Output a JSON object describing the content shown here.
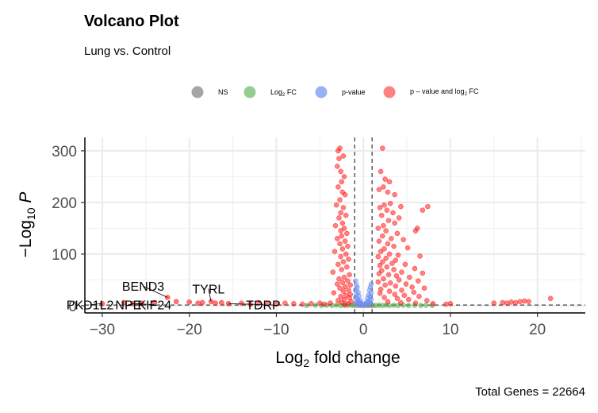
{
  "chart_data": {
    "type": "scatter",
    "title": "Volcano Plot",
    "subtitle": "Lung vs. Control",
    "xlabel": "Log2 fold change",
    "ylabel": "−Log10 P",
    "caption": "Total Genes = 22664",
    "xlim": [
      -32,
      25.5
    ],
    "ylim": [
      -14,
      326
    ],
    "x_ticks": [
      -30,
      -20,
      -10,
      0,
      10,
      20
    ],
    "x_tick_labels": [
      "−30",
      "−20",
      "−10",
      "0",
      "10",
      "20"
    ],
    "y_ticks": [
      0,
      100,
      200,
      300
    ],
    "y_tick_labels": [
      "0",
      "100",
      "200",
      "300"
    ],
    "fc_cutoff": 1,
    "p_cutoff_line": 1.3,
    "grid": true,
    "legend_position": "top",
    "legend": [
      {
        "key": "NS",
        "label": "NS",
        "color": "#7f7f7f"
      },
      {
        "key": "FC",
        "label": "Log2 FC",
        "color": "#4dab4d"
      },
      {
        "key": "P",
        "label": "p-value",
        "color": "#6f8fef"
      },
      {
        "key": "PFC",
        "label": "p – value and log2 FC",
        "color": "#ff1a1a"
      }
    ],
    "series": [
      {
        "name": "p – value and log2 FC",
        "color": "#ff1a1a",
        "points": [
          [
            -2.9,
            300
          ],
          [
            -2.7,
            305
          ],
          [
            -2.3,
            290
          ],
          [
            -2.8,
            285
          ],
          [
            -3.0,
            270
          ],
          [
            -2.6,
            260
          ],
          [
            -2.2,
            250
          ],
          [
            -2.5,
            240
          ],
          [
            -2.9,
            230
          ],
          [
            -2.4,
            220
          ],
          [
            -2.1,
            215
          ],
          [
            -2.7,
            205
          ],
          [
            -3.1,
            195
          ],
          [
            -2.3,
            190
          ],
          [
            -2.6,
            180
          ],
          [
            -2.0,
            175
          ],
          [
            -2.8,
            170
          ],
          [
            -2.4,
            160
          ],
          [
            -3.2,
            155
          ],
          [
            -2.2,
            150
          ],
          [
            -2.6,
            145
          ],
          [
            -1.9,
            140
          ],
          [
            -2.5,
            135
          ],
          [
            -3.0,
            130
          ],
          [
            -2.1,
            125
          ],
          [
            -2.7,
            120
          ],
          [
            -1.8,
            115
          ],
          [
            -2.4,
            110
          ],
          [
            -3.3,
            105
          ],
          [
            -2.0,
            100
          ],
          [
            -2.6,
            95
          ],
          [
            -1.7,
            90
          ],
          [
            -2.3,
            85
          ],
          [
            -2.9,
            80
          ],
          [
            -1.9,
            75
          ],
          [
            -2.5,
            70
          ],
          [
            -3.5,
            65
          ],
          [
            -1.6,
            60
          ],
          [
            -2.2,
            55
          ],
          [
            -2.8,
            52
          ],
          [
            -1.8,
            48
          ],
          [
            -2.4,
            45
          ],
          [
            -3.0,
            42
          ],
          [
            -1.5,
            40
          ],
          [
            -2.1,
            37
          ],
          [
            -2.7,
            34
          ],
          [
            -1.7,
            30
          ],
          [
            -2.3,
            28
          ],
          [
            -3.4,
            25
          ],
          [
            -1.5,
            22
          ],
          [
            -2.0,
            20
          ],
          [
            -2.6,
            18
          ],
          [
            -1.6,
            15
          ],
          [
            -2.2,
            12
          ],
          [
            -2.9,
            10
          ],
          [
            -1.4,
            8
          ],
          [
            -2.5,
            6
          ],
          [
            -3.8,
            5
          ],
          [
            -1.8,
            4
          ],
          [
            -4.5,
            3
          ],
          [
            -2.1,
            2
          ],
          [
            -5,
            5
          ],
          [
            -6,
            4
          ],
          [
            -7,
            3
          ],
          [
            -8,
            4
          ],
          [
            -9,
            5
          ],
          [
            -10,
            3
          ],
          [
            -11,
            4
          ],
          [
            -12,
            6
          ],
          [
            -13,
            3
          ],
          [
            -14,
            5
          ],
          [
            2.2,
            305
          ],
          [
            2.0,
            260
          ],
          [
            2.5,
            245
          ],
          [
            3.0,
            240
          ],
          [
            2.3,
            230
          ],
          [
            1.8,
            225
          ],
          [
            2.8,
            220
          ],
          [
            3.6,
            215
          ],
          [
            3.1,
            198
          ],
          [
            2.4,
            195
          ],
          [
            4.3,
            192
          ],
          [
            1.9,
            190
          ],
          [
            7.4,
            192
          ],
          [
            2.7,
            185
          ],
          [
            3.4,
            180
          ],
          [
            6.8,
            185
          ],
          [
            2.1,
            175
          ],
          [
            4.1,
            170
          ],
          [
            2.9,
            165
          ],
          [
            3.6,
            160
          ],
          [
            6.2,
            150
          ],
          [
            6.0,
            145
          ],
          [
            2.3,
            155
          ],
          [
            1.7,
            150
          ],
          [
            2.6,
            145
          ],
          [
            3.9,
            140
          ],
          [
            2.2,
            135
          ],
          [
            3.2,
            130
          ],
          [
            4.6,
            128
          ],
          [
            1.8,
            125
          ],
          [
            2.8,
            120
          ],
          [
            3.5,
            115
          ],
          [
            5.1,
            112
          ],
          [
            2.4,
            110
          ],
          [
            2.0,
            105
          ],
          [
            3.0,
            100
          ],
          [
            4.0,
            98
          ],
          [
            6.5,
            96
          ],
          [
            1.7,
            95
          ],
          [
            2.6,
            92
          ],
          [
            3.7,
            88
          ],
          [
            2.2,
            85
          ],
          [
            3.3,
            82
          ],
          [
            4.8,
            80
          ],
          [
            1.9,
            78
          ],
          [
            2.7,
            75
          ],
          [
            5.9,
            72
          ],
          [
            3.5,
            70
          ],
          [
            2.1,
            68
          ],
          [
            4.4,
            65
          ],
          [
            6.8,
            63
          ],
          [
            1.8,
            62
          ],
          [
            2.9,
            60
          ],
          [
            3.8,
            58
          ],
          [
            5.3,
            55
          ],
          [
            2.3,
            52
          ],
          [
            4.1,
            50
          ],
          [
            6.3,
            48
          ],
          [
            1.7,
            46
          ],
          [
            3.1,
            44
          ],
          [
            4.9,
            42
          ],
          [
            2.5,
            40
          ],
          [
            3.7,
            38
          ],
          [
            5.6,
            36
          ],
          [
            7.0,
            34
          ],
          [
            2.0,
            32
          ],
          [
            4.4,
            30
          ],
          [
            3.0,
            28
          ],
          [
            5.8,
            26
          ],
          [
            1.9,
            24
          ],
          [
            3.6,
            22
          ],
          [
            4.7,
            20
          ],
          [
            6.4,
            18
          ],
          [
            2.4,
            16
          ],
          [
            3.9,
            14
          ],
          [
            5.2,
            12
          ],
          [
            7.3,
            10
          ],
          [
            2.8,
            8
          ],
          [
            4.3,
            6
          ],
          [
            6.0,
            5
          ],
          [
            8.0,
            4
          ],
          [
            9.5,
            3
          ],
          [
            10,
            4
          ],
          [
            15,
            5
          ],
          [
            16,
            6
          ],
          [
            17,
            7
          ],
          [
            18,
            8
          ],
          [
            18.5,
            9
          ],
          [
            19,
            8
          ],
          [
            16.5,
            5
          ],
          [
            17.5,
            6
          ],
          [
            21.5,
            14
          ]
        ]
      },
      {
        "name": "p-value",
        "color": "#6f8fef",
        "points": [
          [
            -0.9,
            48
          ],
          [
            -0.8,
            40
          ],
          [
            -0.7,
            35
          ],
          [
            -0.9,
            30
          ],
          [
            -0.6,
            26
          ],
          [
            -0.8,
            22
          ],
          [
            -0.5,
            19
          ],
          [
            -0.9,
            16
          ],
          [
            -0.7,
            13
          ],
          [
            -0.4,
            11
          ],
          [
            -0.6,
            9
          ],
          [
            -0.8,
            7
          ],
          [
            -0.3,
            6
          ],
          [
            -0.5,
            5
          ],
          [
            -0.2,
            4
          ],
          [
            -0.7,
            3
          ],
          [
            -0.4,
            2
          ],
          [
            -0.1,
            2
          ],
          [
            0.9,
            42
          ],
          [
            0.8,
            36
          ],
          [
            0.7,
            30
          ],
          [
            0.9,
            25
          ],
          [
            0.6,
            21
          ],
          [
            0.8,
            18
          ],
          [
            0.5,
            15
          ],
          [
            0.9,
            12
          ],
          [
            0.7,
            10
          ],
          [
            0.4,
            8
          ],
          [
            0.6,
            7
          ],
          [
            0.8,
            5
          ],
          [
            0.3,
            4
          ],
          [
            0.5,
            3
          ],
          [
            0.2,
            2
          ],
          [
            0.1,
            2
          ]
        ]
      },
      {
        "name": "Log2 FC",
        "color": "#4dab4d",
        "points": [
          [
            -6.5,
            0.5
          ],
          [
            -5.5,
            0.8
          ],
          [
            -4.8,
            0.4
          ],
          [
            -4.2,
            0.9
          ],
          [
            -3.6,
            0.5
          ],
          [
            -3.1,
            1.0
          ],
          [
            -2.6,
            0.3
          ],
          [
            -2.2,
            0.8
          ],
          [
            -1.8,
            0.5
          ],
          [
            -1.4,
            1.0
          ],
          [
            -1.1,
            0.4
          ],
          [
            1.1,
            0.6
          ],
          [
            1.4,
            0.3
          ],
          [
            1.8,
            0.9
          ],
          [
            2.2,
            0.5
          ],
          [
            2.6,
            1.0
          ],
          [
            3.0,
            0.4
          ],
          [
            3.5,
            0.8
          ],
          [
            4.0,
            0.5
          ],
          [
            4.6,
            0.9
          ],
          [
            5.2,
            0.4
          ],
          [
            5.9,
            0.7
          ],
          [
            6.6,
            0.5
          ],
          [
            7.2,
            0.9
          ],
          [
            7.9,
            0.4
          ]
        ]
      },
      {
        "name": "NS",
        "color": "#7f7f7f",
        "points": [
          [
            -0.8,
            0.5
          ],
          [
            -0.5,
            0.8
          ],
          [
            -0.3,
            0.3
          ],
          [
            -0.1,
            1.0
          ],
          [
            0.1,
            0.6
          ],
          [
            0.3,
            0.9
          ],
          [
            0.5,
            0.4
          ],
          [
            0.7,
            0.8
          ],
          [
            0.9,
            0.5
          ]
        ]
      }
    ],
    "extreme_points": [
      {
        "x": -30,
        "y": 4,
        "label": "PKD1L2"
      },
      {
        "x": -27.5,
        "y": 6
      },
      {
        "x": -26.5,
        "y": 4,
        "label": "KIF24"
      },
      {
        "x": -25.5,
        "y": 5,
        "label": "NPE"
      },
      {
        "x": -24,
        "y": 6
      },
      {
        "x": -22.5,
        "y": 16,
        "label": "BEND3"
      },
      {
        "x": -21.5,
        "y": 8
      },
      {
        "x": -20,
        "y": 7
      },
      {
        "x": -19,
        "y": 5
      },
      {
        "x": -18.5,
        "y": 6
      },
      {
        "x": -17.5,
        "y": 8,
        "label": "TYRL"
      },
      {
        "x": -17,
        "y": 5
      },
      {
        "x": -16.3,
        "y": 6
      },
      {
        "x": -15.5,
        "y": 4,
        "label": "TDRP"
      }
    ],
    "labels": [
      {
        "text": "BEND3",
        "x": -22.5,
        "y": 16,
        "lx": -25.3,
        "ly": 38
      },
      {
        "text": "TYRL",
        "x": -17.5,
        "y": 8,
        "lx": -17.8,
        "ly": 33
      },
      {
        "text": "TDRP",
        "x": -15.5,
        "y": 4,
        "lx": -11.5,
        "ly": 2
      },
      {
        "text": "PKD1L2",
        "x": -30,
        "y": 4,
        "lx": -31.4,
        "ly": 2
      },
      {
        "text": "NPE",
        "x": -25.5,
        "y": 5,
        "lx": -27.0,
        "ly": 2
      },
      {
        "text": "KIF24",
        "x": -26.5,
        "y": 4,
        "lx": -24.0,
        "ly": 2
      }
    ]
  }
}
